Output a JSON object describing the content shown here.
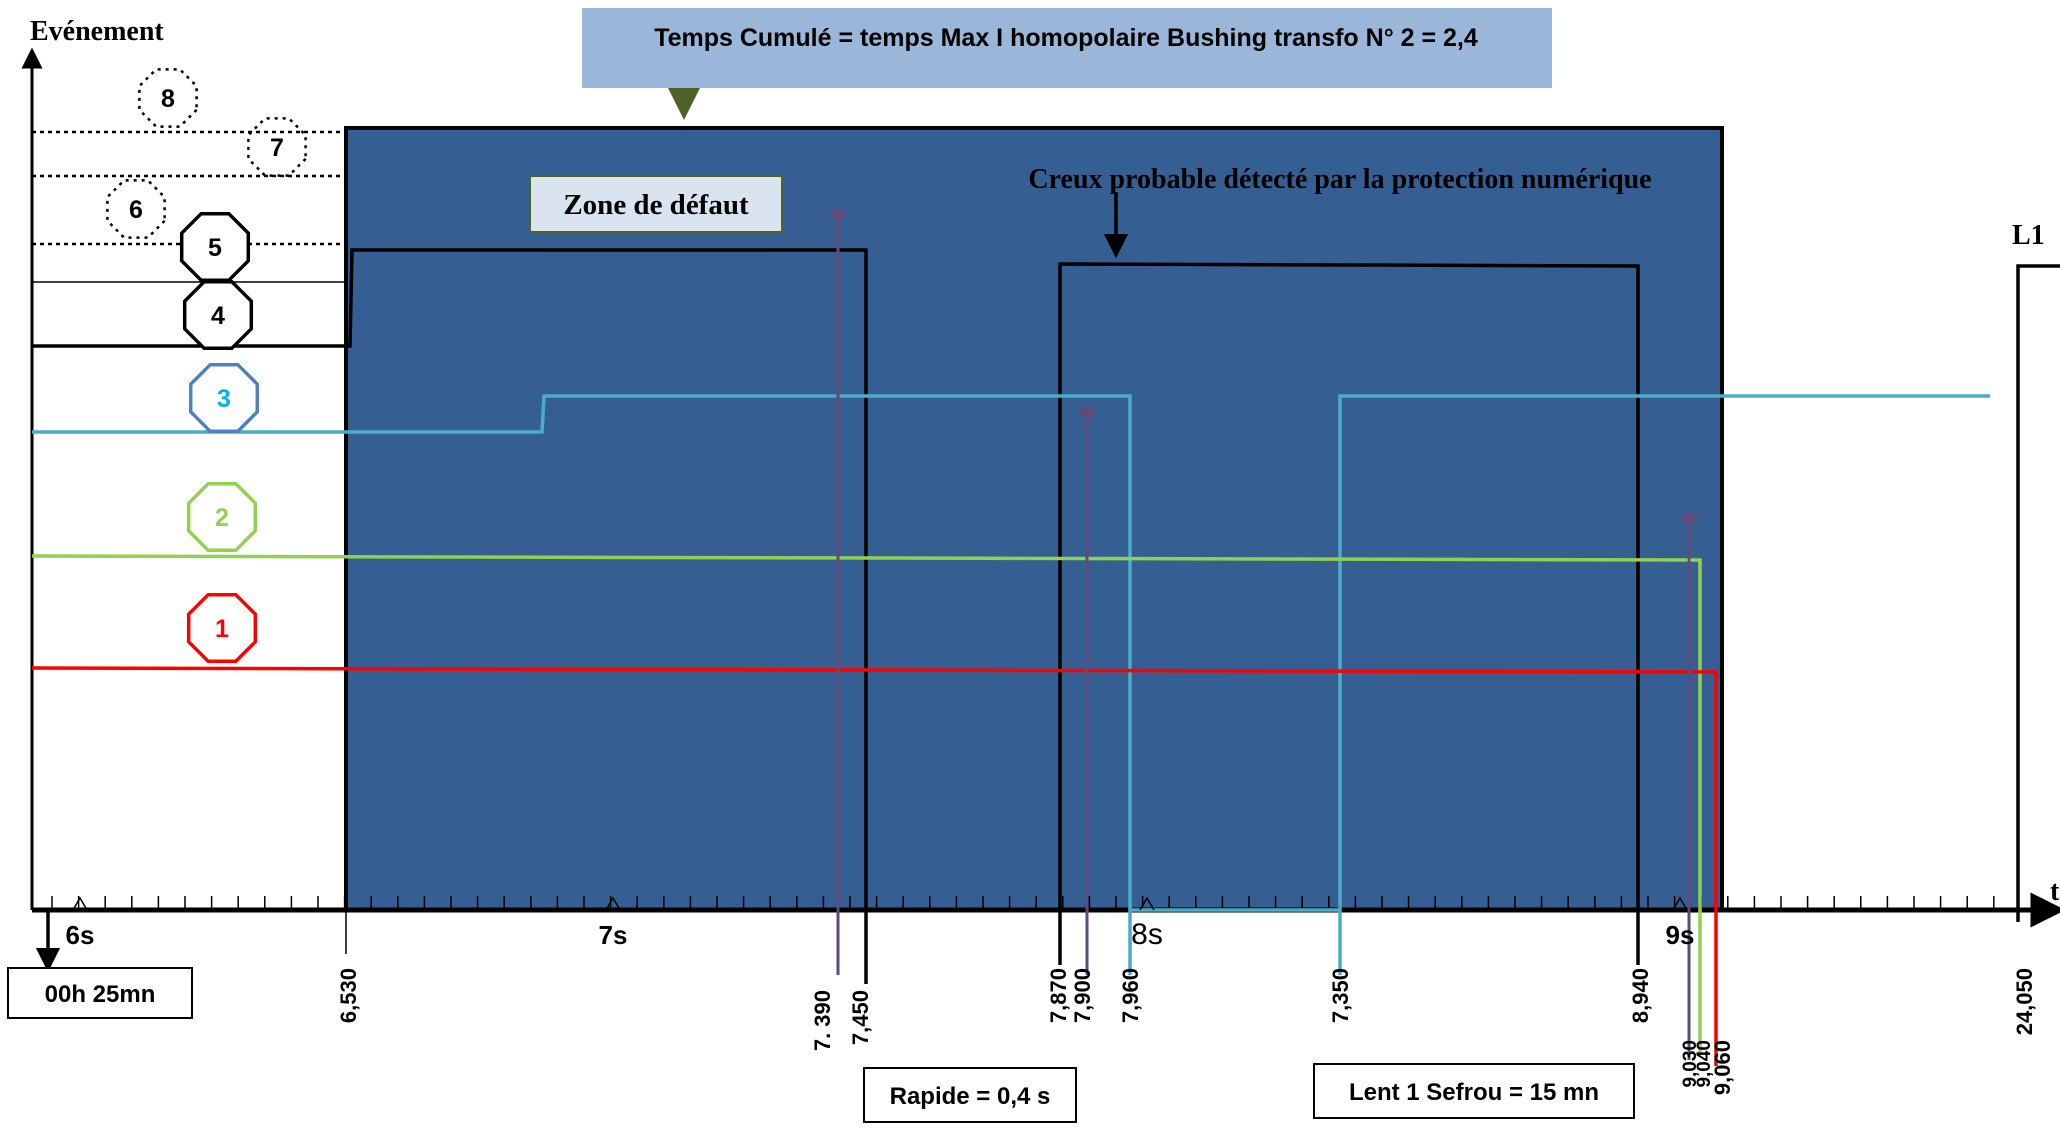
{
  "diagram": {
    "y_axis_label": "Evénement",
    "x_axis_label": "t",
    "top_banner": "Temps Cumulé = temps Max I homopolaire Bushing transfo N° 2  = 2,4",
    "zone_label": "Zone de défaut",
    "creux_label": "Creux probable détecté par la protection numérique",
    "l1_label": "L1",
    "start_time_label": "00h 25mn",
    "rapide_label": "Rapide = 0,4 s",
    "lent_label": "Lent 1 Sefrou = 15 mn",
    "seconds_labels": [
      "6s",
      "7s",
      "8s",
      "9s"
    ],
    "event_numbers": [
      "1",
      "2",
      "3",
      "4",
      "5",
      "6",
      "7",
      "8"
    ],
    "time_labels": [
      "6,530",
      "7. 390",
      "7,450",
      "7,870",
      "7,900",
      "7,960",
      "7,350",
      "8,940",
      "9,030",
      "9,040",
      "9,060",
      "24,050"
    ],
    "colors": {
      "zone_fill": "#355f92",
      "banner_fill": "#9ab6d8",
      "banner_arrow": "#4f6228",
      "zone_label_fill": "#dae3f0",
      "event_1": "#ff0000",
      "event_2": "#92d050",
      "event_3": "#00b0f0",
      "event_3_octagon": "#4f81bd",
      "event_3_line": "#4bacc6",
      "event_dark": "#000000",
      "marker": "#604a7b"
    }
  }
}
